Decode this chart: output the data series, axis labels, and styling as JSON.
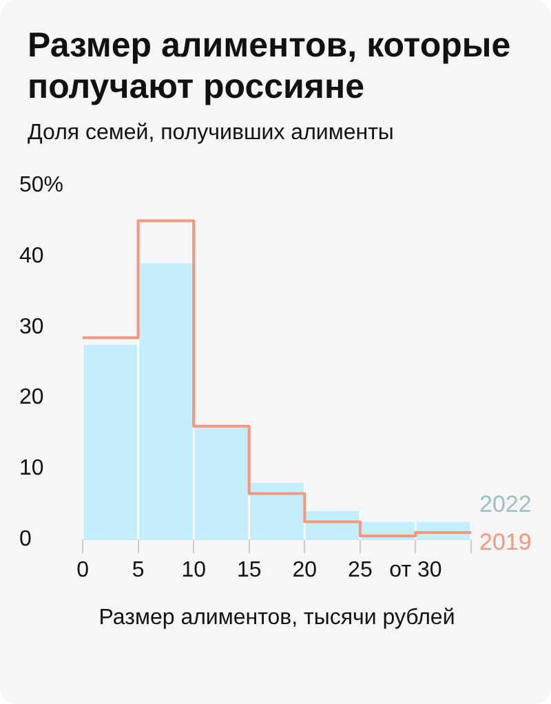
{
  "chart_data": {
    "type": "histogram",
    "title": "Размер алиментов, которые получают россияне",
    "subtitle": "Доля семей, получивших алименты",
    "xlabel": "Размер алиментов, тысячи рублей",
    "bins": [
      0,
      5,
      10,
      15,
      20,
      25,
      30,
      35
    ],
    "series": [
      {
        "name": "2022",
        "color": "#c4eefb",
        "values": [
          27.5,
          39,
          16,
          8,
          4,
          2.5,
          2.5
        ]
      },
      {
        "name": "2019",
        "type": "step",
        "color": "#f7967a",
        "x": [
          0,
          5,
          10,
          15,
          20,
          25,
          30,
          35
        ],
        "values": [
          28.5,
          45,
          16,
          6.5,
          2.5,
          0.5,
          1,
          1
        ]
      }
    ],
    "xlim": [
      0,
      35
    ],
    "xticks": [
      0,
      5,
      10,
      15,
      20,
      25,
      {
        "value": 30,
        "label": "от 30"
      },
      {
        "value": 35,
        "label": null
      }
    ],
    "ylim": [
      0,
      50
    ],
    "yticks": [
      0,
      10,
      20,
      30,
      40,
      {
        "value": 50,
        "label": "50%"
      }
    ]
  }
}
